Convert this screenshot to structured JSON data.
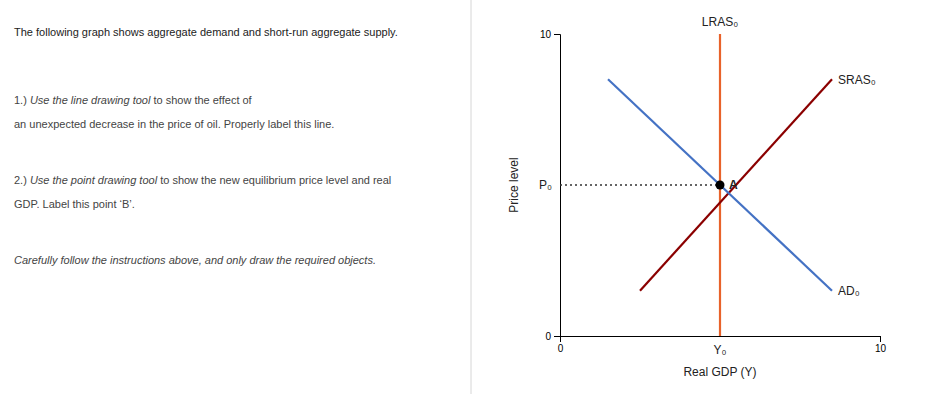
{
  "chart_data": {
    "type": "line",
    "title": "The following graph shows aggregate demand and short-run aggregate supply.",
    "instructions": [
      [
        [
          {
            "text": "1.) ",
            "italic": false
          },
          {
            "text": "Use the line drawing tool",
            "italic": true
          },
          {
            "text": " to show the effect of",
            "italic": false
          }
        ],
        [
          {
            "text": "an unexpected decrease in the price of oil. Properly label this line.",
            "italic": false
          }
        ]
      ],
      [
        [
          {
            "text": "2.) ",
            "italic": false
          },
          {
            "text": "Use the point drawing tool",
            "italic": true
          },
          {
            "text": " to show the new equilibrium price level and real",
            "italic": false
          }
        ],
        [
          {
            "text": "GDP. Label this point ‘B’.",
            "italic": false
          }
        ]
      ],
      [
        [
          {
            "text": "Carefully follow the instructions above, and only draw the required objects.",
            "italic": true
          }
        ]
      ]
    ],
    "xlabel": "Real GDP (Y)",
    "ylabel": "Price level",
    "xlim": [
      0,
      10
    ],
    "ylim": [
      0,
      10
    ],
    "xticks": [
      0,
      10
    ],
    "yticks": [
      0,
      10
    ],
    "series": [
      {
        "name": "LRAS₀",
        "type": "line",
        "color": "#E8622A",
        "x": [
          5.0,
          5.0
        ],
        "values": [
          0,
          10
        ]
      },
      {
        "name": "SRAS₀",
        "type": "line",
        "color": "#8B0000",
        "x": [
          2.5,
          8.5
        ],
        "values": [
          1.5,
          8.5
        ]
      },
      {
        "name": "AD₀",
        "type": "line",
        "color": "#4472C4",
        "x": [
          1.5,
          8.5
        ],
        "values": [
          8.5,
          1.5
        ]
      },
      {
        "type": "line",
        "line_style": "dotted",
        "color": "#333333",
        "x": [
          0,
          5.0
        ],
        "values": [
          5.0,
          5.0
        ]
      },
      {
        "name": "A",
        "type": "scatter",
        "color": "#000000",
        "x": [
          5.0
        ],
        "values": [
          5.0
        ]
      }
    ],
    "annotations": [
      {
        "text": "P₀",
        "y": 5.0
      },
      {
        "text": "Y₀",
        "x": 5.0
      }
    ]
  }
}
